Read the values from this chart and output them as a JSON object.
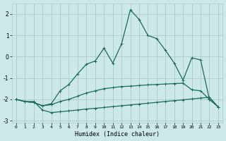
{
  "xlabel": "Humidex (Indice chaleur)",
  "background_color": "#cce8e8",
  "grid_color": "#aacccc",
  "line_color": "#1a6b5a",
  "xlim": [
    -0.5,
    23.5
  ],
  "ylim": [
    -3.1,
    2.5
  ],
  "yticks": [
    -3,
    -2,
    -1,
    0,
    1,
    2
  ],
  "xticks": [
    0,
    1,
    2,
    3,
    4,
    5,
    6,
    7,
    8,
    9,
    10,
    11,
    12,
    13,
    14,
    15,
    16,
    17,
    18,
    19,
    20,
    21,
    22,
    23
  ],
  "line1_x": [
    0,
    1,
    2,
    3,
    4,
    5,
    6,
    7,
    8,
    9,
    10,
    11,
    12,
    13,
    14,
    15,
    16,
    17,
    18,
    19,
    20,
    21,
    22,
    23
  ],
  "line1_y": [
    -2.0,
    -2.1,
    -2.1,
    -2.5,
    -2.62,
    -2.58,
    -2.54,
    -2.5,
    -2.45,
    -2.42,
    -2.38,
    -2.34,
    -2.3,
    -2.26,
    -2.22,
    -2.18,
    -2.14,
    -2.1,
    -2.06,
    -2.02,
    -1.98,
    -1.94,
    -1.9,
    -2.35
  ],
  "line2_x": [
    0,
    1,
    2,
    3,
    4,
    5,
    6,
    7,
    8,
    9,
    10,
    11,
    12,
    13,
    14,
    15,
    16,
    17,
    18,
    19,
    20,
    21,
    22,
    23
  ],
  "line2_y": [
    -2.0,
    -2.1,
    -2.15,
    -2.3,
    -2.25,
    -2.1,
    -2.0,
    -1.85,
    -1.7,
    -1.6,
    -1.5,
    -1.45,
    -1.4,
    -1.38,
    -1.35,
    -1.32,
    -1.3,
    -1.28,
    -1.26,
    -1.24,
    -1.55,
    -1.6,
    -2.0,
    -2.35
  ],
  "line3_x": [
    0,
    1,
    2,
    3,
    4,
    5,
    6,
    7,
    8,
    9,
    10,
    11,
    12,
    13,
    14,
    15,
    16,
    17,
    18,
    19,
    20,
    21,
    22,
    23
  ],
  "line3_y": [
    -2.0,
    -2.1,
    -2.15,
    -2.3,
    -2.2,
    -1.6,
    -1.3,
    -0.8,
    -0.35,
    -0.2,
    0.4,
    -0.3,
    0.6,
    2.2,
    1.75,
    1.0,
    0.85,
    0.3,
    -0.3,
    -1.1,
    -0.05,
    -0.15,
    -2.0,
    -2.35
  ],
  "marker": "+",
  "markersize": 3,
  "linewidth": 0.9
}
